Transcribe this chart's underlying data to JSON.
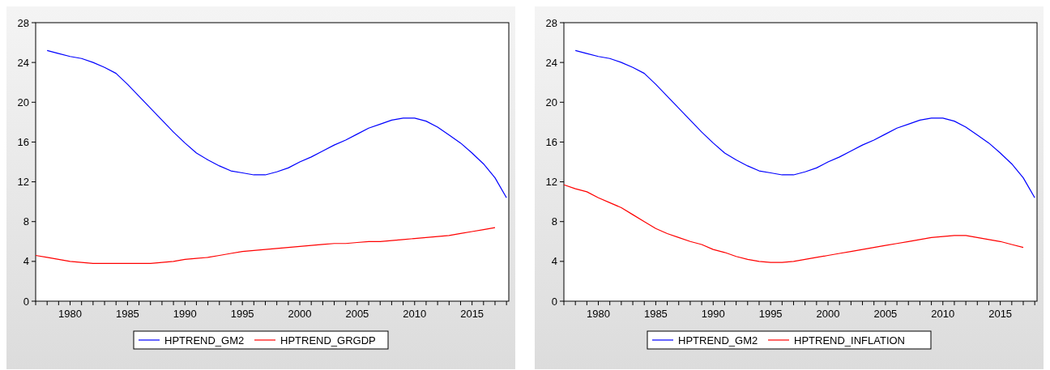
{
  "chart_data": [
    {
      "type": "line",
      "x": [
        1978,
        1979,
        1980,
        1981,
        1982,
        1983,
        1984,
        1985,
        1986,
        1987,
        1988,
        1989,
        1990,
        1991,
        1992,
        1993,
        1994,
        1995,
        1996,
        1997,
        1998,
        1999,
        2000,
        2001,
        2002,
        2003,
        2004,
        2005,
        2006,
        2007,
        2008,
        2009,
        2010,
        2011,
        2012,
        2013,
        2014,
        2015,
        2016,
        2017,
        2018
      ],
      "series": [
        {
          "name": "HPTREND_GM2",
          "color": "#0000ff",
          "values": [
            25.2,
            24.9,
            24.6,
            24.4,
            24.0,
            23.5,
            22.9,
            21.8,
            20.6,
            19.4,
            18.2,
            17.0,
            15.9,
            14.9,
            14.2,
            13.6,
            13.1,
            12.9,
            12.7,
            12.7,
            13.0,
            13.4,
            14.0,
            14.5,
            15.1,
            15.7,
            16.2,
            16.8,
            17.4,
            17.8,
            18.2,
            18.4,
            18.4,
            18.1,
            17.5,
            16.7,
            15.9,
            14.9,
            13.8,
            12.4,
            10.4
          ]
        },
        {
          "name": "HPTREND_GRGDP",
          "color": "#ff0000",
          "x": [
            1977,
            1978,
            1979,
            1980,
            1981,
            1982,
            1983,
            1984,
            1985,
            1986,
            1987,
            1988,
            1989,
            1990,
            1991,
            1992,
            1993,
            1994,
            1995,
            1996,
            1997,
            1998,
            1999,
            2000,
            2001,
            2002,
            2003,
            2004,
            2005,
            2006,
            2007,
            2008,
            2009,
            2010,
            2011,
            2012,
            2013,
            2014,
            2015,
            2016,
            2017
          ],
          "values": [
            4.6,
            4.4,
            4.2,
            4.0,
            3.9,
            3.8,
            3.8,
            3.8,
            3.8,
            3.8,
            3.8,
            3.9,
            4.0,
            4.2,
            4.3,
            4.4,
            4.6,
            4.8,
            5.0,
            5.1,
            5.2,
            5.3,
            5.4,
            5.5,
            5.6,
            5.7,
            5.8,
            5.8,
            5.9,
            6.0,
            6.0,
            6.1,
            6.2,
            6.3,
            6.4,
            6.5,
            6.6,
            6.8,
            7.0,
            7.2,
            7.4
          ]
        }
      ],
      "xlim": [
        1977,
        2018.2
      ],
      "xticks": [
        {
          "value": 1977,
          "label": null
        },
        {
          "value": 1978,
          "label": null
        },
        {
          "value": 1979,
          "label": null
        },
        1980,
        {
          "value": 1981,
          "label": null
        },
        {
          "value": 1982,
          "label": null
        },
        {
          "value": 1983,
          "label": null
        },
        {
          "value": 1984,
          "label": null
        },
        1985,
        {
          "value": 1986,
          "label": null
        },
        {
          "value": 1987,
          "label": null
        },
        {
          "value": 1988,
          "label": null
        },
        {
          "value": 1989,
          "label": null
        },
        1990,
        {
          "value": 1991,
          "label": null
        },
        {
          "value": 1992,
          "label": null
        },
        {
          "value": 1993,
          "label": null
        },
        {
          "value": 1994,
          "label": null
        },
        1995,
        {
          "value": 1996,
          "label": null
        },
        {
          "value": 1997,
          "label": null
        },
        {
          "value": 1998,
          "label": null
        },
        {
          "value": 1999,
          "label": null
        },
        2000,
        {
          "value": 2001,
          "label": null
        },
        {
          "value": 2002,
          "label": null
        },
        {
          "value": 2003,
          "label": null
        },
        {
          "value": 2004,
          "label": null
        },
        2005,
        {
          "value": 2006,
          "label": null
        },
        {
          "value": 2007,
          "label": null
        },
        {
          "value": 2008,
          "label": null
        },
        {
          "value": 2009,
          "label": null
        },
        2010,
        {
          "value": 2011,
          "label": null
        },
        {
          "value": 2012,
          "label": null
        },
        {
          "value": 2013,
          "label": null
        },
        {
          "value": 2014,
          "label": null
        },
        2015,
        {
          "value": 2016,
          "label": null
        },
        {
          "value": 2017,
          "label": null
        },
        {
          "value": 2018,
          "label": null
        }
      ],
      "ylim": [
        0,
        28
      ],
      "yticks": [
        0,
        4,
        8,
        12,
        16,
        20,
        24,
        28
      ],
      "grid": false,
      "legend": "bottom"
    },
    {
      "type": "line",
      "x": [
        1978,
        1979,
        1980,
        1981,
        1982,
        1983,
        1984,
        1985,
        1986,
        1987,
        1988,
        1989,
        1990,
        1991,
        1992,
        1993,
        1994,
        1995,
        1996,
        1997,
        1998,
        1999,
        2000,
        2001,
        2002,
        2003,
        2004,
        2005,
        2006,
        2007,
        2008,
        2009,
        2010,
        2011,
        2012,
        2013,
        2014,
        2015,
        2016,
        2017,
        2018
      ],
      "series": [
        {
          "name": "HPTREND_GM2",
          "color": "#0000ff",
          "values": [
            25.2,
            24.9,
            24.6,
            24.4,
            24.0,
            23.5,
            22.9,
            21.8,
            20.6,
            19.4,
            18.2,
            17.0,
            15.9,
            14.9,
            14.2,
            13.6,
            13.1,
            12.9,
            12.7,
            12.7,
            13.0,
            13.4,
            14.0,
            14.5,
            15.1,
            15.7,
            16.2,
            16.8,
            17.4,
            17.8,
            18.2,
            18.4,
            18.4,
            18.1,
            17.5,
            16.7,
            15.9,
            14.9,
            13.8,
            12.4,
            10.4
          ]
        },
        {
          "name": "HPTREND_INFLATION",
          "color": "#ff0000",
          "x": [
            1977,
            1978,
            1979,
            1980,
            1981,
            1982,
            1983,
            1984,
            1985,
            1986,
            1987,
            1988,
            1989,
            1990,
            1991,
            1992,
            1993,
            1994,
            1995,
            1996,
            1997,
            1998,
            1999,
            2000,
            2001,
            2002,
            2003,
            2004,
            2005,
            2006,
            2007,
            2008,
            2009,
            2010,
            2011,
            2012,
            2013,
            2014,
            2015,
            2016,
            2017
          ],
          "values": [
            11.7,
            11.3,
            11.0,
            10.4,
            9.9,
            9.4,
            8.7,
            8.0,
            7.3,
            6.8,
            6.4,
            6.0,
            5.7,
            5.2,
            4.9,
            4.5,
            4.2,
            4.0,
            3.9,
            3.9,
            4.0,
            4.2,
            4.4,
            4.6,
            4.8,
            5.0,
            5.2,
            5.4,
            5.6,
            5.8,
            6.0,
            6.2,
            6.4,
            6.5,
            6.6,
            6.6,
            6.4,
            6.2,
            6.0,
            5.7,
            5.4
          ]
        }
      ],
      "xlim": [
        1977,
        2018.2
      ],
      "xticks": [
        {
          "value": 1977,
          "label": null
        },
        {
          "value": 1978,
          "label": null
        },
        {
          "value": 1979,
          "label": null
        },
        1980,
        {
          "value": 1981,
          "label": null
        },
        {
          "value": 1982,
          "label": null
        },
        {
          "value": 1983,
          "label": null
        },
        {
          "value": 1984,
          "label": null
        },
        1985,
        {
          "value": 1986,
          "label": null
        },
        {
          "value": 1987,
          "label": null
        },
        {
          "value": 1988,
          "label": null
        },
        {
          "value": 1989,
          "label": null
        },
        1990,
        {
          "value": 1991,
          "label": null
        },
        {
          "value": 1992,
          "label": null
        },
        {
          "value": 1993,
          "label": null
        },
        {
          "value": 1994,
          "label": null
        },
        1995,
        {
          "value": 1996,
          "label": null
        },
        {
          "value": 1997,
          "label": null
        },
        {
          "value": 1998,
          "label": null
        },
        {
          "value": 1999,
          "label": null
        },
        2000,
        {
          "value": 2001,
          "label": null
        },
        {
          "value": 2002,
          "label": null
        },
        {
          "value": 2003,
          "label": null
        },
        {
          "value": 2004,
          "label": null
        },
        2005,
        {
          "value": 2006,
          "label": null
        },
        {
          "value": 2007,
          "label": null
        },
        {
          "value": 2008,
          "label": null
        },
        {
          "value": 2009,
          "label": null
        },
        2010,
        {
          "value": 2011,
          "label": null
        },
        {
          "value": 2012,
          "label": null
        },
        {
          "value": 2013,
          "label": null
        },
        {
          "value": 2014,
          "label": null
        },
        2015,
        {
          "value": 2016,
          "label": null
        },
        {
          "value": 2017,
          "label": null
        },
        {
          "value": 2018,
          "label": null
        }
      ],
      "ylim": [
        0,
        28
      ],
      "yticks": [
        0,
        4,
        8,
        12,
        16,
        20,
        24,
        28
      ],
      "grid": false,
      "legend": "bottom"
    }
  ]
}
